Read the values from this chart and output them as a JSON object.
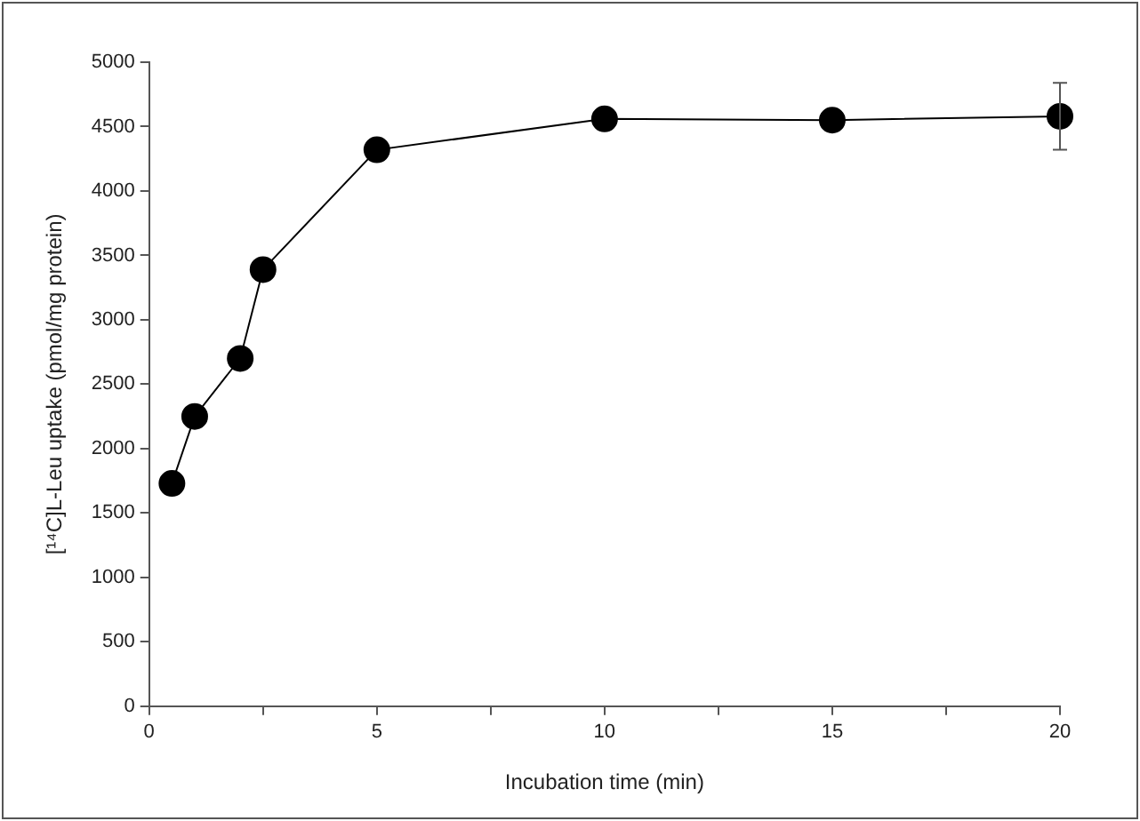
{
  "chart_data": {
    "type": "line",
    "xlabel": "Incubation time (min)",
    "ylabel": "[¹⁴C]L-Leu uptake (pmol/mg protein)",
    "x": [
      0.5,
      1,
      2,
      2.5,
      5,
      10,
      15,
      20
    ],
    "series": [
      {
        "color": "#000000",
        "values": [
          1730,
          2250,
          2700,
          3390,
          4320,
          4560,
          4550,
          4580
        ],
        "errors": [
          null,
          null,
          null,
          null,
          null,
          null,
          null,
          260
        ]
      }
    ],
    "xlim": [
      0,
      20
    ],
    "xticks": [
      0,
      {
        "value": 2.5,
        "label": null
      },
      5,
      {
        "value": 7.5,
        "label": null
      },
      10,
      {
        "value": 12.5,
        "label": null
      },
      15,
      {
        "value": 17.5,
        "label": null
      },
      20
    ],
    "ylim": [
      0,
      5000
    ],
    "yticks": [
      0,
      500,
      1000,
      1500,
      2000,
      2500,
      3000,
      3500,
      4000,
      4500,
      5000
    ],
    "grid": false,
    "legend": false,
    "marker": "circle",
    "line_style": "solid"
  }
}
